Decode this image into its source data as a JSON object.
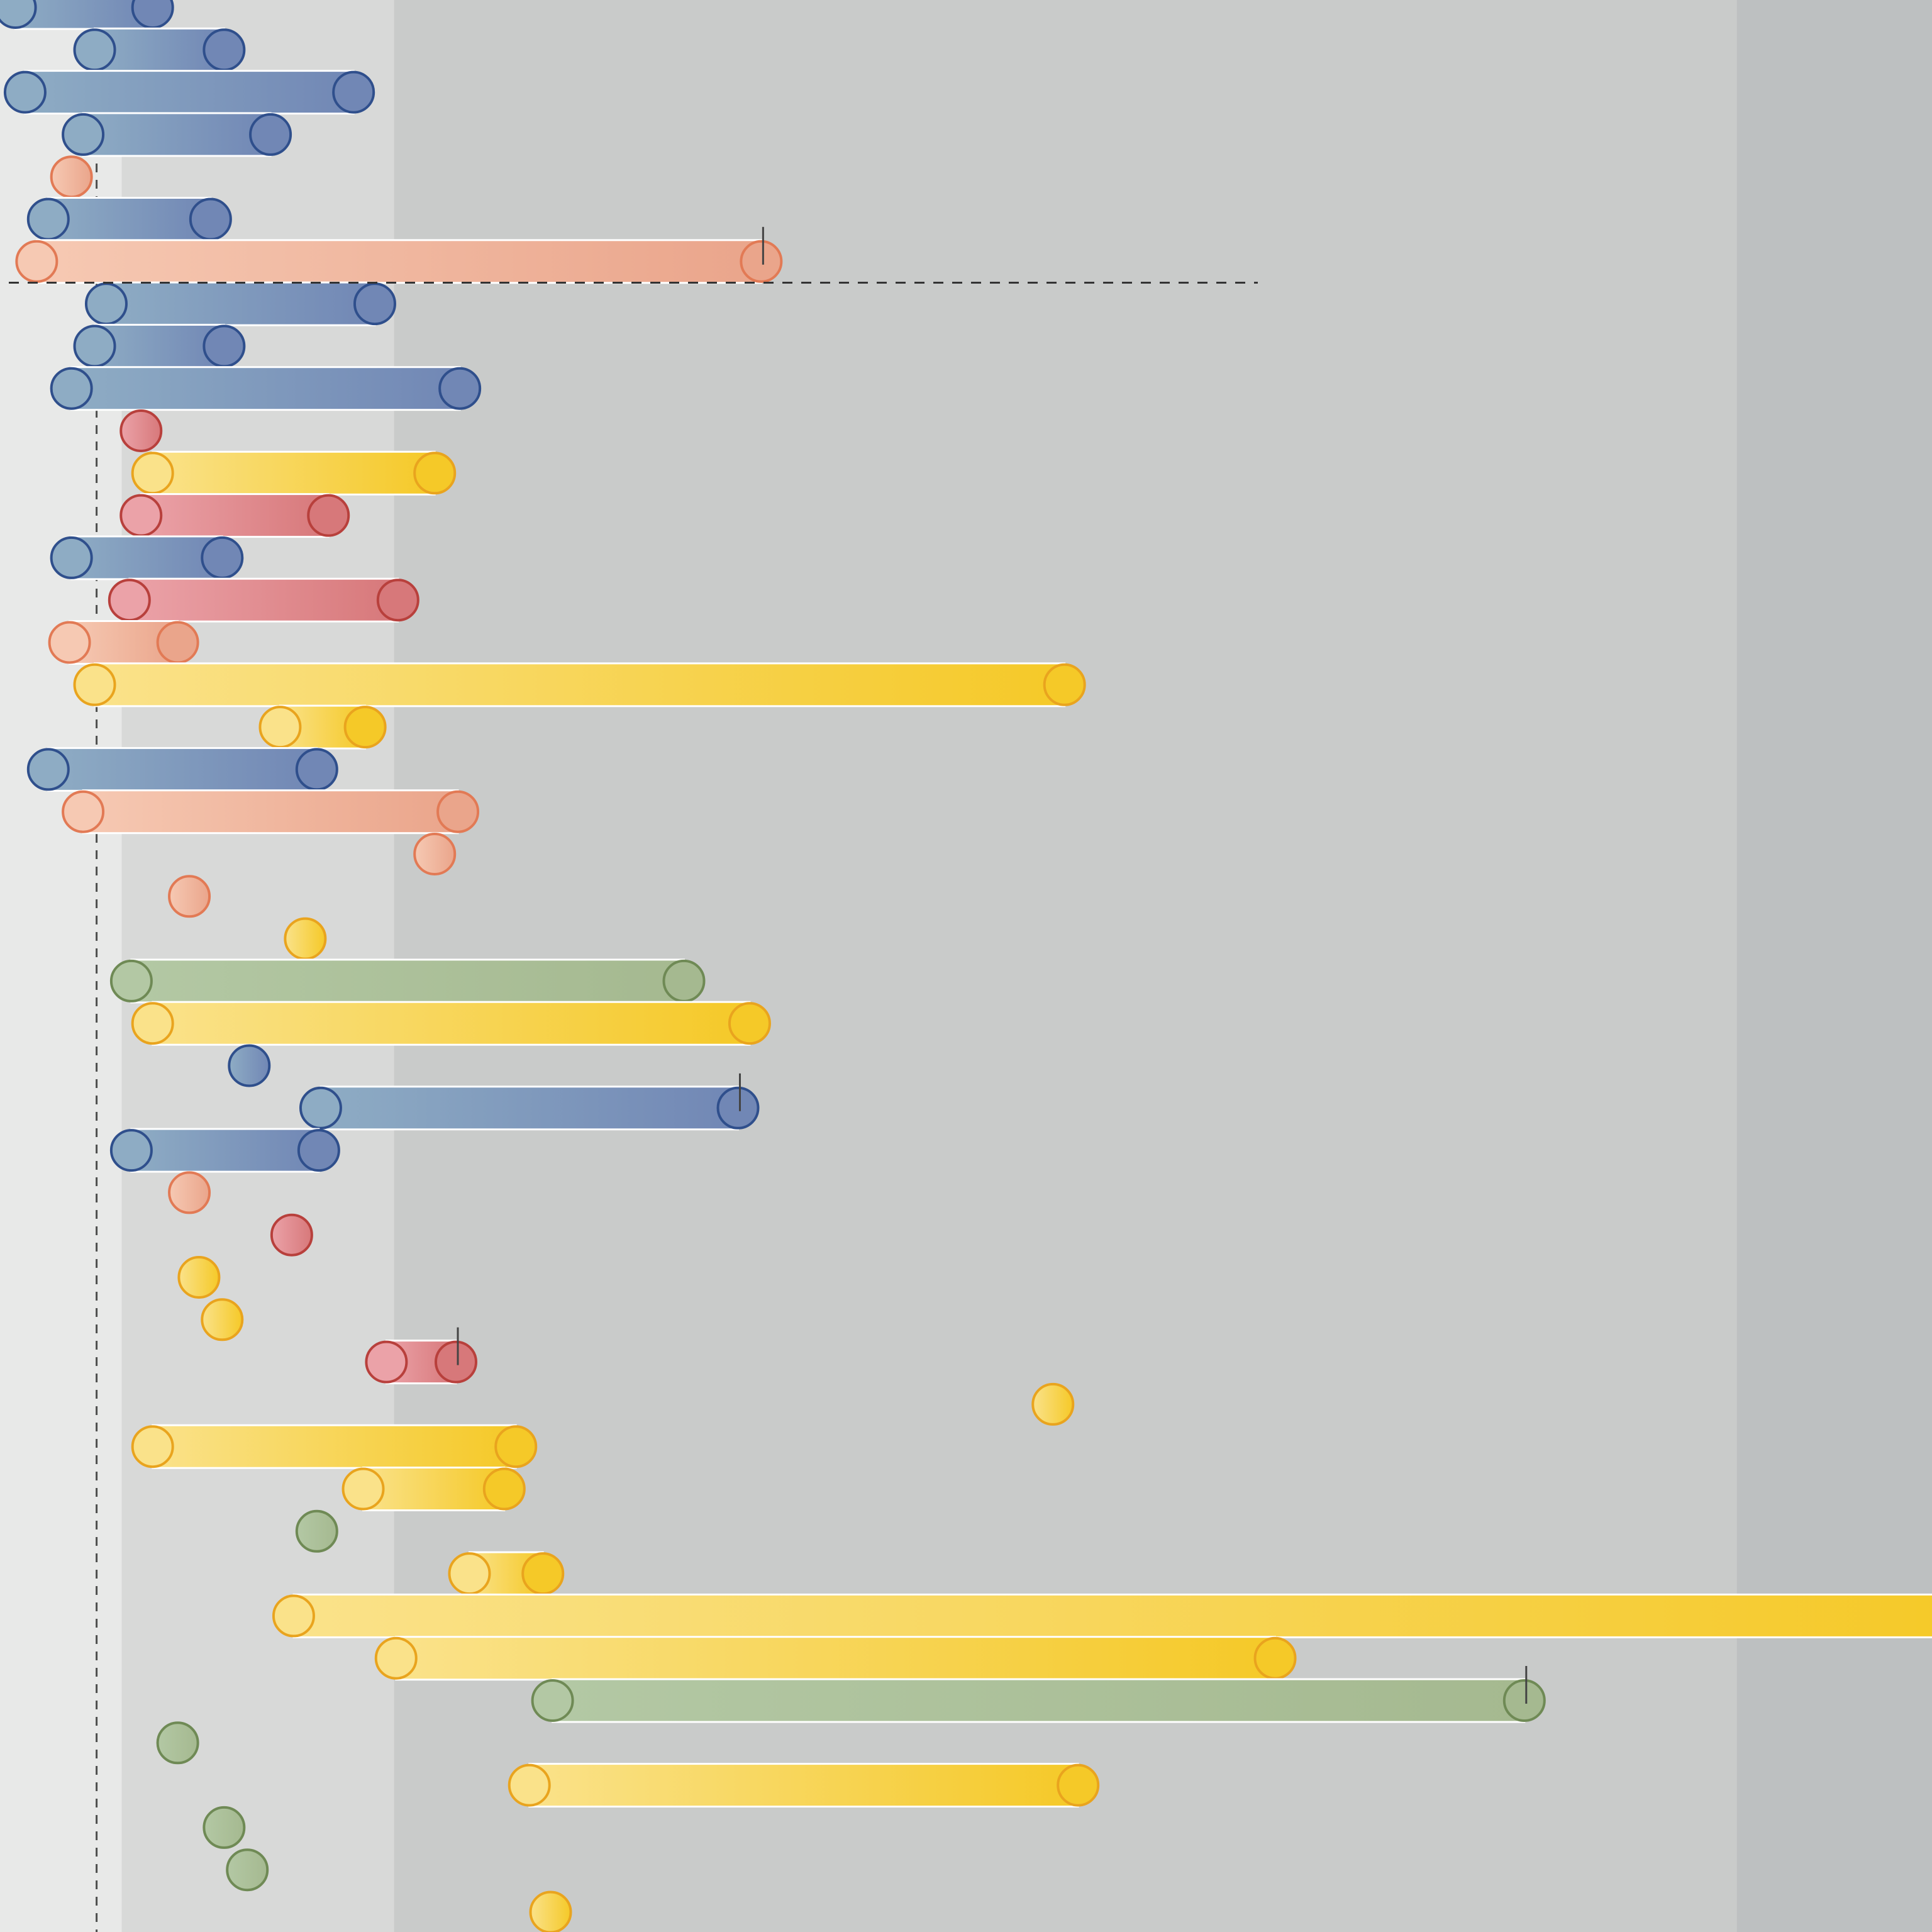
{
  "colors": {
    "band_far": "#e8e9e8",
    "band_near": "#d8d9d8",
    "band_mid": "#c9cbca",
    "band_outer": "#bdc0c1",
    "dashed_line": "#333333",
    "tick_mark": "#444444",
    "bar_outline": "#ffffff",
    "blue": {
      "start": "#8eacc4",
      "end": "#7187b5",
      "stroke": "#2f4f8c"
    },
    "salmon": {
      "start": "#f6c9b3",
      "end": "#eaa58b",
      "stroke": "#e27a55"
    },
    "red": {
      "start": "#eba2a8",
      "end": "#d7787a",
      "stroke": "#b8403c"
    },
    "yellow": {
      "start": "#fae28a",
      "end": "#f5c928",
      "stroke": "#e9a41e"
    },
    "green": {
      "start": "#b3c8a4",
      "end": "#a5b990",
      "stroke": "#6f8a55"
    }
  },
  "chart_data": {
    "type": "dumbbell",
    "title": "",
    "xlabel": "",
    "ylabel": "",
    "legend": "none",
    "grid": false,
    "xlim": [
      0,
      100
    ],
    "reference_line_x": 5,
    "reference_line_y_row": 6.5,
    "background_bands": [
      {
        "from": 0,
        "to": 6.3,
        "color": "band_far"
      },
      {
        "from": 6.3,
        "to": 20.4,
        "color": "band_near"
      },
      {
        "from": 20.4,
        "to": 89.9,
        "color": "band_mid"
      },
      {
        "from": 89.9,
        "to": 100,
        "color": "band_outer"
      }
    ],
    "rows": [
      {
        "row": 0,
        "color": "blue",
        "start": 0.8,
        "end": 7.9
      },
      {
        "row": 1,
        "color": "blue",
        "start": 4.9,
        "end": 11.6
      },
      {
        "row": 2,
        "color": "blue",
        "start": 1.3,
        "end": 18.3
      },
      {
        "row": 3,
        "color": "blue",
        "start": 4.3,
        "end": 14.0
      },
      {
        "row": 4,
        "color": "salmon",
        "start": 3.7,
        "end": 3.7
      },
      {
        "row": 5,
        "color": "blue",
        "start": 2.5,
        "end": 10.9
      },
      {
        "row": 6,
        "color": "salmon",
        "start": 1.9,
        "end": 39.4,
        "tick": true
      },
      {
        "row": 7,
        "color": "blue",
        "start": 5.5,
        "end": 19.4
      },
      {
        "row": 8,
        "color": "blue",
        "start": 4.9,
        "end": 11.6
      },
      {
        "row": 9,
        "color": "blue",
        "start": 3.7,
        "end": 23.8
      },
      {
        "row": 10,
        "color": "red",
        "start": 7.3,
        "end": 7.3
      },
      {
        "row": 11,
        "color": "yellow",
        "start": 7.9,
        "end": 22.5
      },
      {
        "row": 12,
        "color": "red",
        "start": 7.3,
        "end": 17.0
      },
      {
        "row": 13,
        "color": "blue",
        "start": 3.7,
        "end": 11.5
      },
      {
        "row": 14,
        "color": "red",
        "start": 6.7,
        "end": 20.6
      },
      {
        "row": 15,
        "color": "salmon",
        "start": 3.6,
        "end": 9.2
      },
      {
        "row": 16,
        "color": "yellow",
        "start": 4.9,
        "end": 55.1
      },
      {
        "row": 17,
        "color": "yellow",
        "start": 14.5,
        "end": 18.9
      },
      {
        "row": 18,
        "color": "blue",
        "start": 2.5,
        "end": 16.4
      },
      {
        "row": 19,
        "color": "salmon",
        "start": 4.3,
        "end": 23.7
      },
      {
        "row": 20,
        "color": "salmon",
        "start": 22.5,
        "end": 22.5
      },
      {
        "row": 21,
        "color": "salmon",
        "start": 9.8,
        "end": 9.8
      },
      {
        "row": 22,
        "color": "yellow",
        "start": 15.8,
        "end": 15.8
      },
      {
        "row": 23,
        "color": "green",
        "start": 6.8,
        "end": 35.4
      },
      {
        "row": 24,
        "color": "yellow",
        "start": 7.9,
        "end": 38.8
      },
      {
        "row": 25,
        "color": "blue",
        "start": 12.9,
        "end": 12.9
      },
      {
        "row": 26,
        "color": "blue",
        "start": 16.6,
        "end": 38.2,
        "tick": true
      },
      {
        "row": 27,
        "color": "blue",
        "start": 6.8,
        "end": 16.5
      },
      {
        "row": 28,
        "color": "salmon",
        "start": 9.8,
        "end": 9.8
      },
      {
        "row": 29,
        "color": "red",
        "start": 15.1,
        "end": 15.1
      },
      {
        "row": 30,
        "color": "yellow",
        "start": 10.3,
        "end": 10.3
      },
      {
        "row": 31,
        "color": "yellow",
        "start": 11.5,
        "end": 11.5
      },
      {
        "row": 32,
        "color": "red",
        "start": 20.0,
        "end": 23.6,
        "tick": true
      },
      {
        "row": 33,
        "color": "yellow",
        "start": 54.5,
        "end": 54.5
      },
      {
        "row": 34,
        "color": "yellow",
        "start": 7.9,
        "end": 26.7
      },
      {
        "row": 35,
        "color": "yellow",
        "start": 18.8,
        "end": 26.1
      },
      {
        "row": 36,
        "color": "green",
        "start": 16.4,
        "end": 16.4
      },
      {
        "row": 37,
        "color": "yellow",
        "start": 24.3,
        "end": 28.1
      },
      {
        "row": 38,
        "color": "yellow",
        "start": 15.2,
        "end": 101.5
      },
      {
        "row": 39,
        "color": "yellow",
        "start": 20.5,
        "end": 66.0
      },
      {
        "row": 40,
        "color": "green",
        "start": 28.6,
        "end": 78.9,
        "tick": true
      },
      {
        "row": 41,
        "color": "green",
        "start": 9.2,
        "end": 9.2
      },
      {
        "row": 42,
        "color": "yellow",
        "start": 27.4,
        "end": 55.8
      },
      {
        "row": 43,
        "color": "green",
        "start": 11.6,
        "end": 11.6
      },
      {
        "row": 44,
        "color": "green",
        "start": 12.8,
        "end": 12.8
      },
      {
        "row": 45,
        "color": "yellow",
        "start": 28.5,
        "end": 28.5
      }
    ]
  }
}
